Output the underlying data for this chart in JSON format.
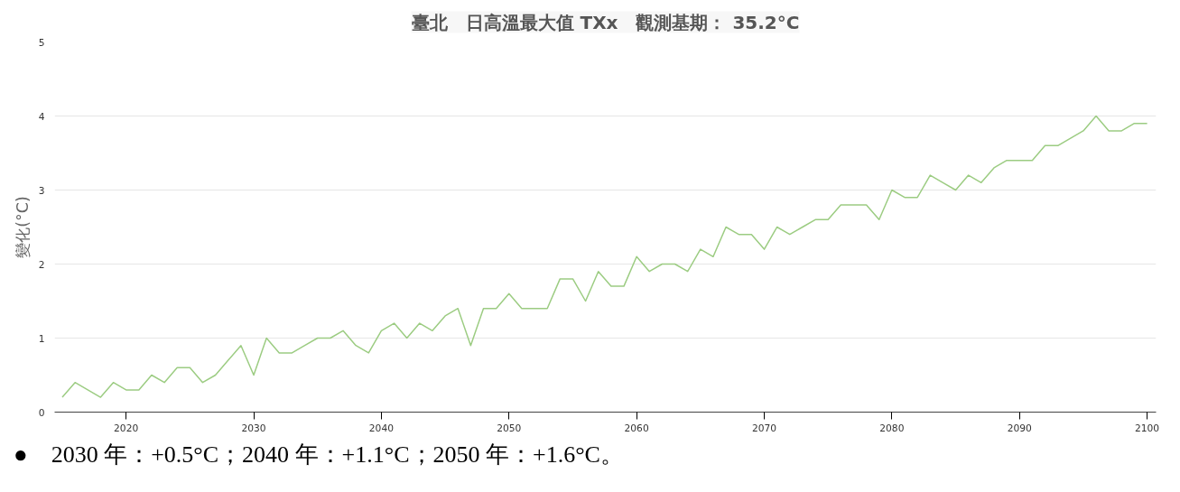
{
  "chart_data": {
    "type": "line",
    "title": "臺北　日高溫最大值 TXx　觀測基期： 35.2°C",
    "ylabel": "變化(°C)",
    "x": [
      2015,
      2016,
      2017,
      2018,
      2019,
      2020,
      2021,
      2022,
      2023,
      2024,
      2025,
      2026,
      2027,
      2028,
      2029,
      2030,
      2031,
      2032,
      2033,
      2034,
      2035,
      2036,
      2037,
      2038,
      2039,
      2040,
      2041,
      2042,
      2043,
      2044,
      2045,
      2046,
      2047,
      2048,
      2049,
      2050,
      2051,
      2052,
      2053,
      2054,
      2055,
      2056,
      2057,
      2058,
      2059,
      2060,
      2061,
      2062,
      2063,
      2064,
      2065,
      2066,
      2067,
      2068,
      2069,
      2070,
      2071,
      2072,
      2073,
      2074,
      2075,
      2076,
      2077,
      2078,
      2079,
      2080,
      2081,
      2082,
      2083,
      2084,
      2085,
      2086,
      2087,
      2088,
      2089,
      2090,
      2091,
      2092,
      2093,
      2094,
      2095,
      2096,
      2097,
      2098,
      2099,
      2100
    ],
    "series": [
      {
        "color": "#9ccc82",
        "values": [
          0.2,
          0.4,
          0.3,
          0.2,
          0.4,
          0.3,
          0.3,
          0.5,
          0.4,
          0.6,
          0.6,
          0.4,
          0.5,
          0.7,
          0.9,
          0.5,
          1.0,
          0.8,
          0.8,
          0.9,
          1.0,
          1.0,
          1.1,
          0.9,
          0.8,
          1.1,
          1.2,
          1.0,
          1.2,
          1.1,
          1.3,
          1.4,
          0.9,
          1.4,
          1.4,
          1.6,
          1.4,
          1.4,
          1.4,
          1.8,
          1.8,
          1.5,
          1.9,
          1.7,
          1.7,
          2.1,
          1.9,
          2.0,
          2.0,
          1.9,
          2.2,
          2.1,
          2.5,
          2.4,
          2.4,
          2.2,
          2.5,
          2.4,
          2.5,
          2.6,
          2.6,
          2.8,
          2.8,
          2.8,
          2.6,
          3.0,
          2.9,
          2.9,
          3.2,
          3.1,
          3.0,
          3.2,
          3.1,
          3.3,
          3.4,
          3.4,
          3.4,
          3.6,
          3.6,
          3.7,
          3.8,
          4.0,
          3.8,
          3.8,
          3.9,
          3.9
        ]
      }
    ],
    "xlim": [
      2014.4,
      2100.7
    ],
    "ylim": [
      0,
      5
    ],
    "xticks": [
      2020,
      2030,
      2040,
      2050,
      2060,
      2070,
      2080,
      2090,
      2100
    ],
    "yticks": [
      0,
      1,
      2,
      3,
      4,
      5
    ],
    "grid": "y",
    "marker": "none",
    "line_style": "solid",
    "annotations": [
      "●　2030 年：+0.5°C；2040 年：+1.1°C；2050 年：+1.6°C。"
    ]
  }
}
